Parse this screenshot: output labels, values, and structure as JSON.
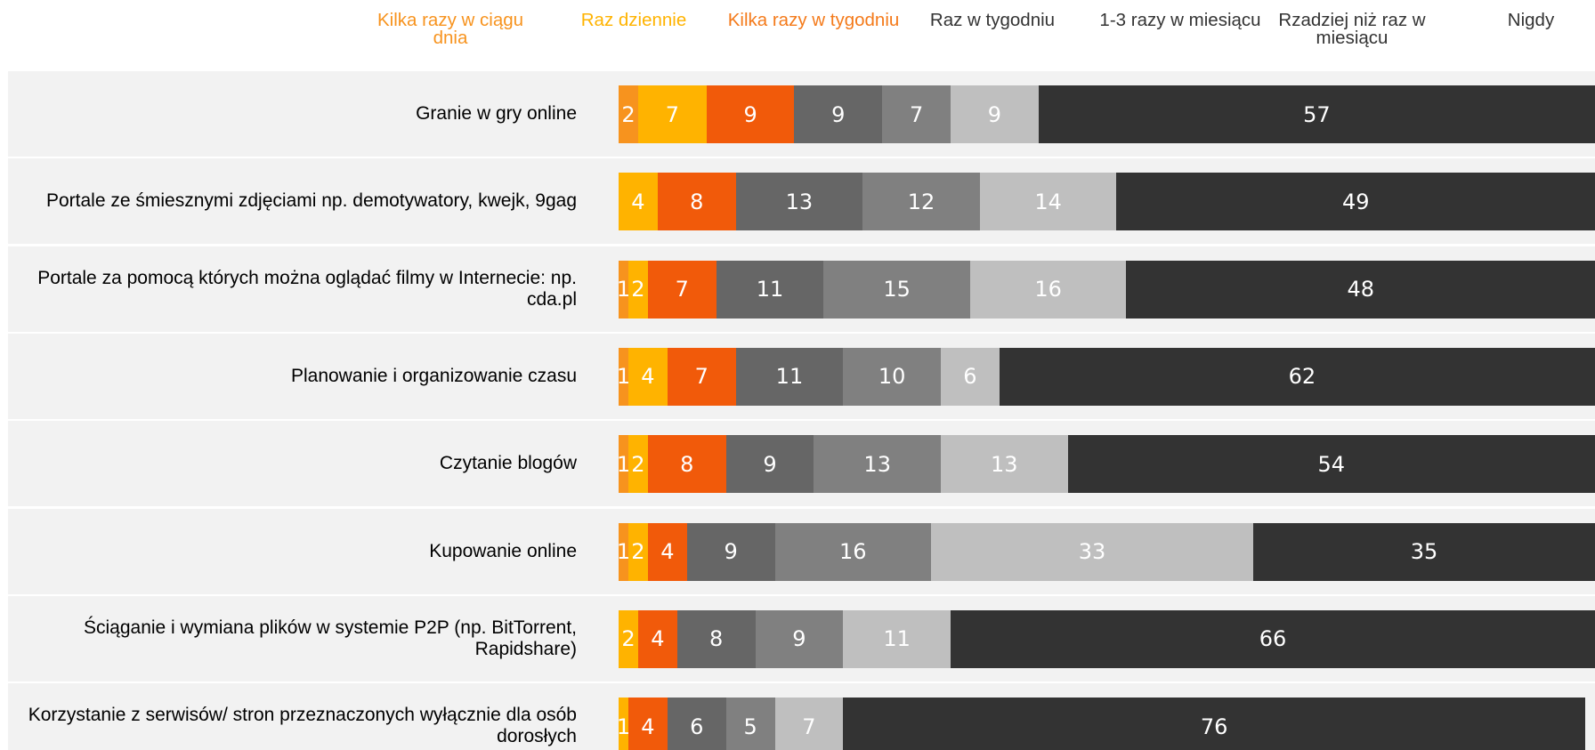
{
  "chart_data": {
    "type": "stacked-barh",
    "categories": [
      "Granie w gry online",
      "Portale ze śmiesznymi zdjęciami np. demotywatory, kwejk, 9gag",
      "Portale za pomocą których można oglądać filmy w Internecie: np. cda.pl",
      "Planowanie i organizowanie czasu",
      "Czytanie blogów",
      "Kupowanie online",
      "Ściąganie i wymiana plików w systemie P2P (np. BitTorrent, Rapidshare)",
      "Korzystanie z serwisów/ stron przeznaczonych  wyłącznie dla osób dorosłych"
    ],
    "series": [
      {
        "name": "Kilka razy w ciągu dnia",
        "color": "#f7931e",
        "label_color": "#f7931e",
        "values": [
          2,
          null,
          1,
          1,
          1,
          1,
          null,
          null
        ]
      },
      {
        "name": "Raz dziennie",
        "color": "#ffb300",
        "label_color": "#ffb300",
        "values": [
          7,
          4,
          2,
          4,
          2,
          2,
          2,
          1
        ]
      },
      {
        "name": "Kilka razy w tygodniu",
        "color": "#f15a0a",
        "label_color": "#f47a1a",
        "values": [
          9,
          8,
          7,
          7,
          8,
          4,
          4,
          4
        ]
      },
      {
        "name": "Raz w tygodniu",
        "color": "#666666",
        "label_color": "#333333",
        "values": [
          9,
          13,
          11,
          11,
          9,
          9,
          8,
          6
        ]
      },
      {
        "name": "1-3 razy w miesiącu",
        "color": "#808080",
        "label_color": "#333333",
        "values": [
          7,
          12,
          15,
          10,
          13,
          16,
          9,
          5
        ]
      },
      {
        "name": "Rzadziej niż raz w miesiącu",
        "color": "#bfbfbf",
        "label_color": "#333333",
        "values": [
          9,
          14,
          16,
          6,
          13,
          33,
          11,
          7
        ]
      },
      {
        "name": "Nigdy",
        "color": "#333333",
        "label_color": "#333333",
        "values": [
          57,
          49,
          48,
          62,
          54,
          35,
          66,
          76
        ]
      }
    ],
    "xlim": [
      0,
      100
    ]
  }
}
